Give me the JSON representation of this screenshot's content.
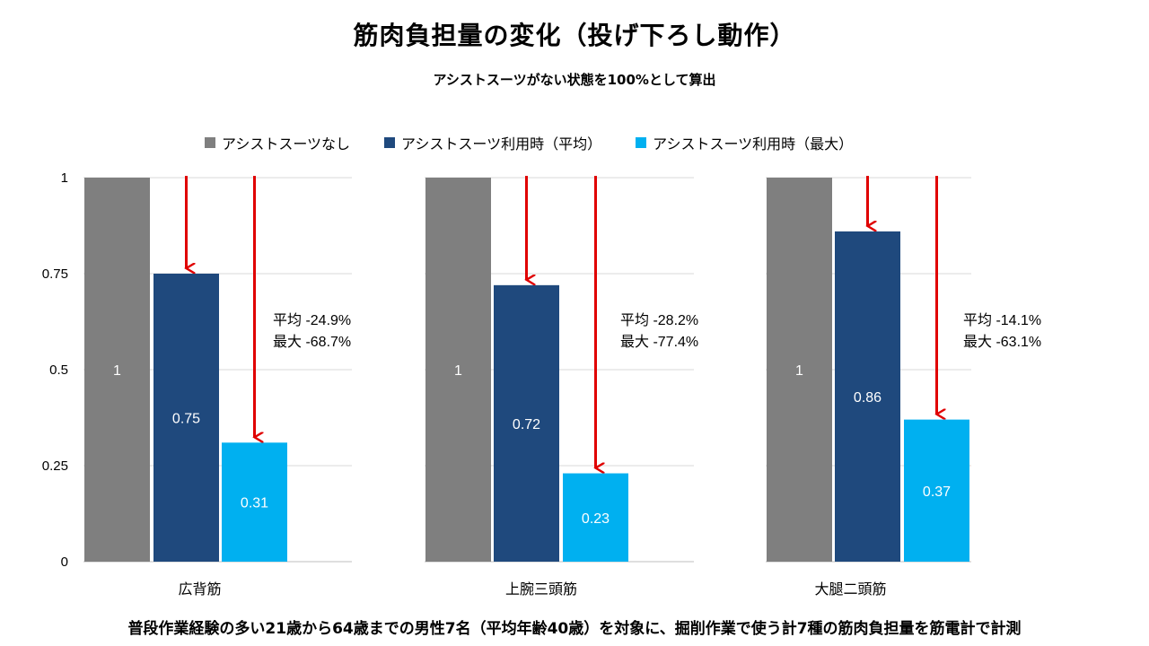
{
  "title": "筋肉負担量の変化（投げ下ろし動作）",
  "subtitle": "アシストスーツがない状態を100%として算出",
  "footer": "普段作業経験の多い21歳から64歳までの男性7名（平均年齢40歳）を対象に、掘削作業で使う計7種の筋肉負担量を筋電計で計測",
  "legend": [
    {
      "label": "アシストスーツなし",
      "color": "#7f7f7f"
    },
    {
      "label": "アシストスーツ利用時（平均）",
      "color": "#1f497d"
    },
    {
      "label": "アシストスーツ利用時（最大）",
      "color": "#00b0f0"
    }
  ],
  "chart_data": {
    "type": "bar",
    "categories": [
      "広背筋",
      "上腕三頭筋",
      "大腿二頭筋"
    ],
    "series": [
      {
        "name": "アシストスーツなし",
        "color": "#7f7f7f",
        "values": [
          1,
          1,
          1
        ],
        "labels": [
          "1",
          "1",
          "1"
        ]
      },
      {
        "name": "アシストスーツ利用時（平均）",
        "color": "#1f497d",
        "values": [
          0.75,
          0.72,
          0.86
        ],
        "labels": [
          "0.75",
          "0.72",
          "0.86"
        ]
      },
      {
        "name": "アシストスーツ利用時（最大）",
        "color": "#00b0f0",
        "values": [
          0.31,
          0.23,
          0.37
        ],
        "labels": [
          "0.31",
          "0.23",
          "0.37"
        ]
      }
    ],
    "yticks": [
      "0",
      "0.25",
      "0.5",
      "0.75",
      "1"
    ],
    "ylim": [
      0,
      1
    ],
    "annotations": [
      {
        "avg": "平均 -24.9%",
        "max": "最大 -68.7%"
      },
      {
        "avg": "平均 -28.2%",
        "max": "最大 -77.4%"
      },
      {
        "avg": "平均 -14.1%",
        "max": "最大 -63.1%"
      }
    ],
    "arrow_color": "#e00000"
  }
}
